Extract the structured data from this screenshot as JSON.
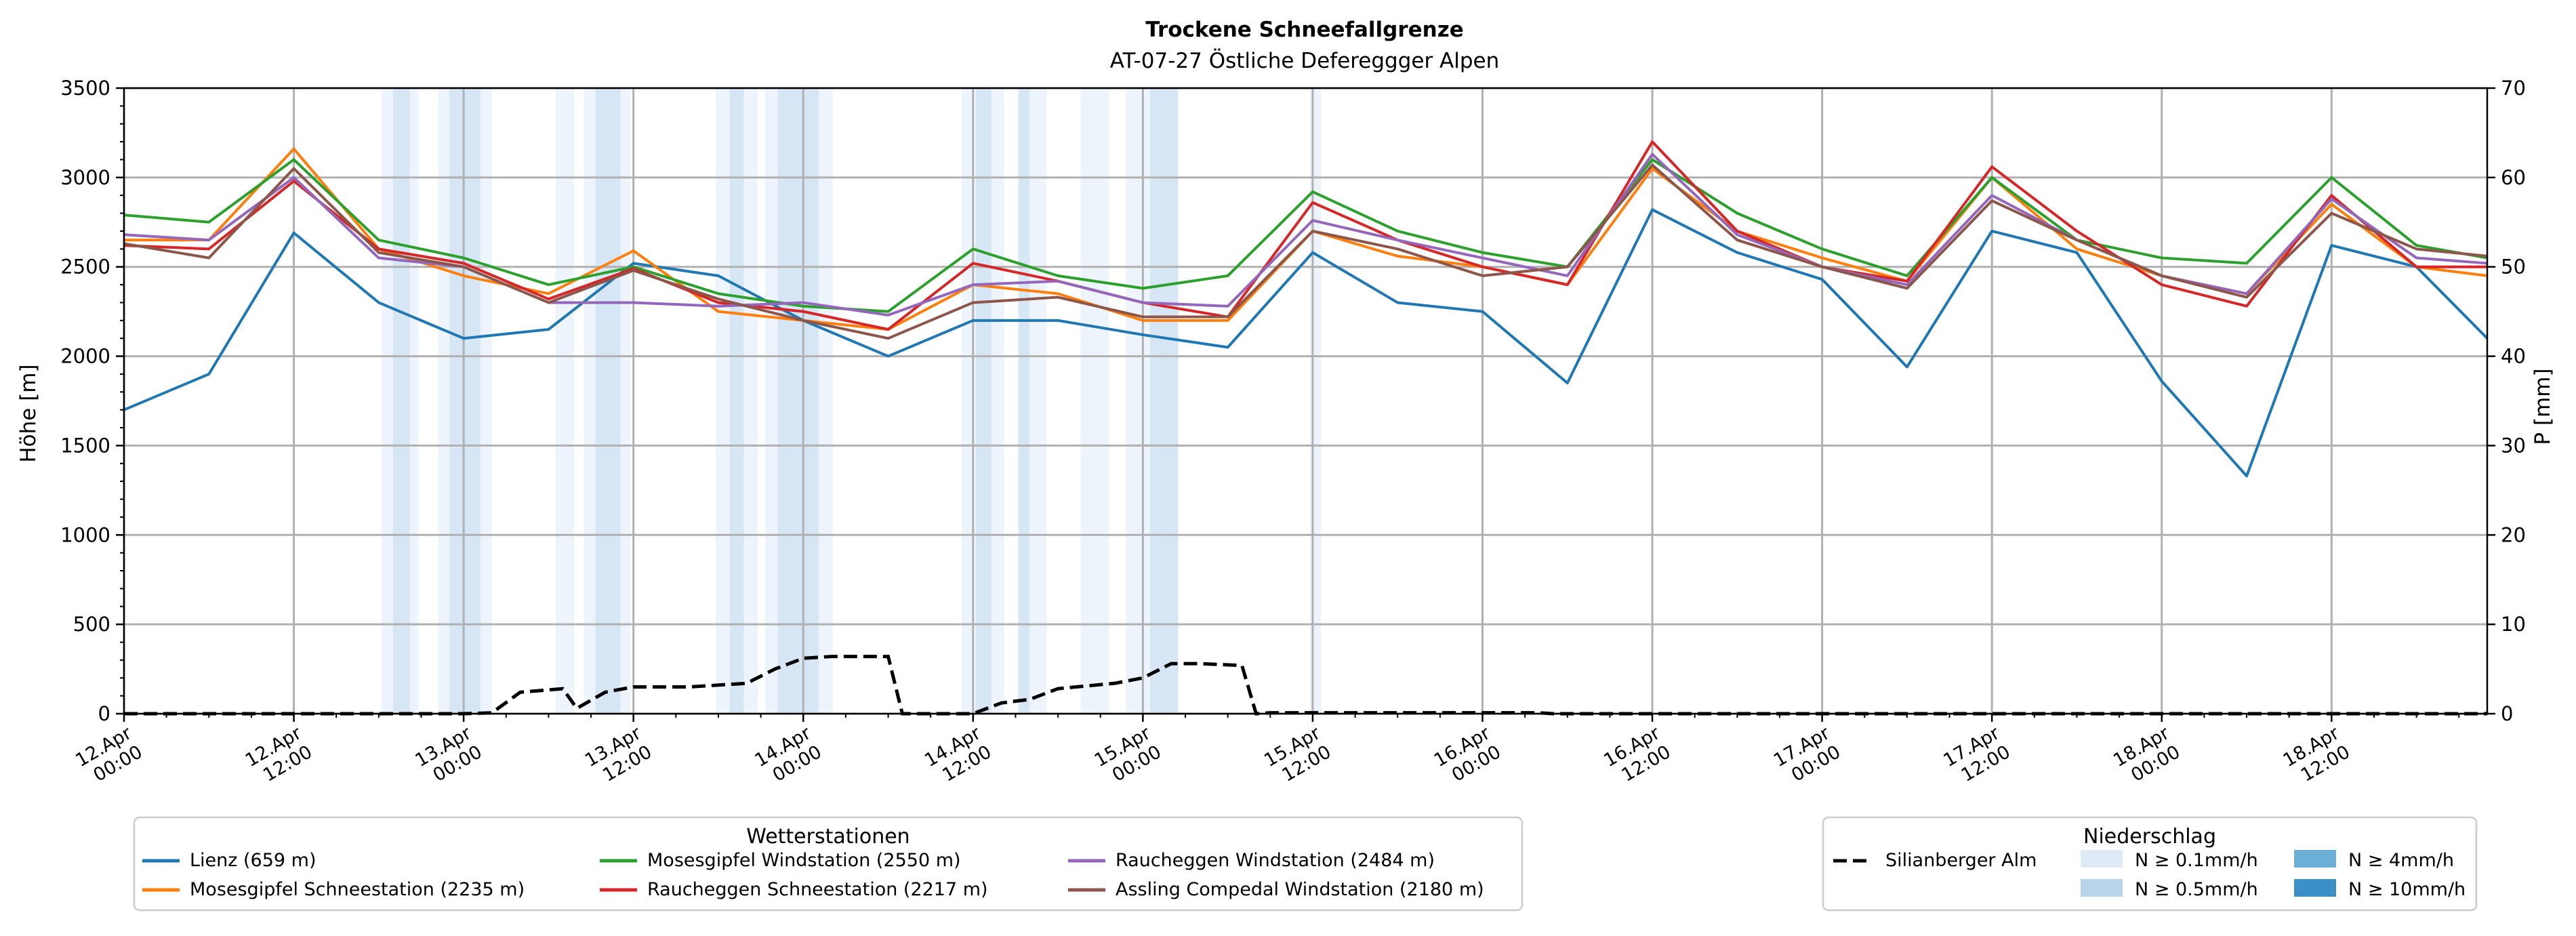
{
  "chart_data": {
    "type": "line",
    "title": "Trockene Schneefallgrenze",
    "subtitle": "AT-07-27 Östliche Defereggger Alpen",
    "ylabel": "Höhe [m]",
    "y2label": "P [mm]",
    "ylim": [
      0,
      3500
    ],
    "y2lim": [
      0,
      70
    ],
    "xlim_hours": [
      0,
      167
    ],
    "grid": true,
    "yticks": [
      0,
      500,
      1000,
      1500,
      2000,
      2500,
      3000,
      3500
    ],
    "y2ticks": [
      0,
      10,
      20,
      30,
      40,
      50,
      60,
      70
    ],
    "xticks": [
      {
        "hour": 0,
        "line1": "12.Apr",
        "line2": "00:00"
      },
      {
        "hour": 12,
        "line1": "12.Apr",
        "line2": "12:00"
      },
      {
        "hour": 24,
        "line1": "13.Apr",
        "line2": "00:00"
      },
      {
        "hour": 36,
        "line1": "13.Apr",
        "line2": "12:00"
      },
      {
        "hour": 48,
        "line1": "14.Apr",
        "line2": "00:00"
      },
      {
        "hour": 60,
        "line1": "14.Apr",
        "line2": "12:00"
      },
      {
        "hour": 72,
        "line1": "15.Apr",
        "line2": "00:00"
      },
      {
        "hour": 84,
        "line1": "15.Apr",
        "line2": "12:00"
      },
      {
        "hour": 96,
        "line1": "16.Apr",
        "line2": "00:00"
      },
      {
        "hour": 108,
        "line1": "16.Apr",
        "line2": "12:00"
      },
      {
        "hour": 120,
        "line1": "17.Apr",
        "line2": "00:00"
      },
      {
        "hour": 132,
        "line1": "17.Apr",
        "line2": "12:00"
      },
      {
        "hour": 144,
        "line1": "18.Apr",
        "line2": "00:00"
      },
      {
        "hour": 156,
        "line1": "18.Apr",
        "line2": "12:00"
      }
    ],
    "x_hours": [
      0,
      6,
      12,
      18,
      24,
      30,
      36,
      42,
      48,
      54,
      60,
      66,
      72,
      78,
      84,
      90,
      96,
      102,
      108,
      114,
      120,
      126,
      132,
      138,
      144,
      150,
      156,
      162,
      167
    ],
    "series": [
      {
        "name": "Lienz (659 m)",
        "color": "#1f77b4",
        "values": [
          1700,
          1900,
          2690,
          2300,
          2100,
          2150,
          2520,
          2450,
          2200,
          2000,
          2200,
          2200,
          2120,
          2050,
          2580,
          2300,
          2250,
          1850,
          2820,
          2580,
          2430,
          1940,
          2700,
          2580,
          1860,
          1330,
          2620,
          2500,
          2100
        ]
      },
      {
        "name": "Mosesgipfel Schneestation (2235 m)",
        "color": "#ff7f0e",
        "values": [
          2650,
          2650,
          3160,
          2600,
          2450,
          2350,
          2590,
          2250,
          2200,
          2150,
          2400,
          2350,
          2200,
          2200,
          2700,
          2560,
          2500,
          2400,
          3050,
          2700,
          2550,
          2420,
          3000,
          2600,
          2450,
          2350,
          2850,
          2500,
          2450
        ]
      },
      {
        "name": "Mosesgipfel Windstation (2550 m)",
        "color": "#2ca02c",
        "values": [
          2790,
          2750,
          3100,
          2650,
          2550,
          2400,
          2500,
          2350,
          2280,
          2250,
          2600,
          2450,
          2380,
          2450,
          2920,
          2700,
          2580,
          2500,
          3100,
          2800,
          2600,
          2450,
          3000,
          2650,
          2550,
          2520,
          3000,
          2620,
          2550
        ]
      },
      {
        "name": "Raucheggen Schneestation (2217 m)",
        "color": "#d62728",
        "values": [
          2620,
          2600,
          2980,
          2600,
          2520,
          2320,
          2490,
          2300,
          2250,
          2150,
          2520,
          2420,
          2300,
          2220,
          2860,
          2650,
          2500,
          2400,
          3200,
          2700,
          2500,
          2420,
          3060,
          2700,
          2400,
          2280,
          2900,
          2500,
          2500
        ]
      },
      {
        "name": "Raucheggen Windstation (2484 m)",
        "color": "#9467bd",
        "values": [
          2680,
          2650,
          3000,
          2550,
          2500,
          2300,
          2300,
          2280,
          2300,
          2230,
          2400,
          2420,
          2300,
          2280,
          2760,
          2650,
          2550,
          2450,
          3130,
          2680,
          2500,
          2400,
          2900,
          2650,
          2450,
          2350,
          2880,
          2550,
          2520
        ]
      },
      {
        "name": "Assling Compedal Windstation (2180 m)",
        "color": "#8c564b",
        "values": [
          2630,
          2550,
          3050,
          2580,
          2500,
          2300,
          2480,
          2320,
          2200,
          2100,
          2300,
          2330,
          2220,
          2220,
          2700,
          2600,
          2450,
          2500,
          3070,
          2650,
          2500,
          2380,
          2870,
          2650,
          2450,
          2330,
          2800,
          2600,
          2560
        ]
      }
    ],
    "dashed_series": {
      "name": "Silianberger Alm",
      "color": "#000000",
      "x_hours": [
        0,
        24,
        26,
        28,
        31,
        32,
        34,
        36,
        40,
        44,
        46,
        48,
        50,
        54,
        55,
        56,
        60,
        62,
        64,
        66,
        70,
        72,
        74,
        76,
        79,
        80,
        81,
        96,
        100,
        101,
        167
      ],
      "values": [
        0,
        0,
        5,
        120,
        140,
        30,
        120,
        150,
        150,
        170,
        250,
        310,
        320,
        320,
        0,
        0,
        0,
        60,
        80,
        140,
        170,
        200,
        280,
        280,
        270,
        0,
        5,
        5,
        5,
        0,
        0
      ]
    },
    "precip_bands": [
      {
        "start": 18.2,
        "end": 19.0,
        "level": 1
      },
      {
        "start": 19.0,
        "end": 20.2,
        "level": 2
      },
      {
        "start": 20.2,
        "end": 20.8,
        "level": 1
      },
      {
        "start": 22.2,
        "end": 23.0,
        "level": 1
      },
      {
        "start": 23.0,
        "end": 25.2,
        "level": 2
      },
      {
        "start": 25.2,
        "end": 26.0,
        "level": 1
      },
      {
        "start": 30.5,
        "end": 31.8,
        "level": 1
      },
      {
        "start": 32.5,
        "end": 33.3,
        "level": 1
      },
      {
        "start": 33.3,
        "end": 35.1,
        "level": 2
      },
      {
        "start": 35.1,
        "end": 35.8,
        "level": 1
      },
      {
        "start": 41.8,
        "end": 42.8,
        "level": 1
      },
      {
        "start": 42.8,
        "end": 43.8,
        "level": 2
      },
      {
        "start": 43.8,
        "end": 44.8,
        "level": 1
      },
      {
        "start": 45.3,
        "end": 46.2,
        "level": 1
      },
      {
        "start": 46.2,
        "end": 49.1,
        "level": 2
      },
      {
        "start": 49.1,
        "end": 50.1,
        "level": 1
      },
      {
        "start": 59.2,
        "end": 60.2,
        "level": 1
      },
      {
        "start": 60.2,
        "end": 61.3,
        "level": 2
      },
      {
        "start": 61.3,
        "end": 62.2,
        "level": 1
      },
      {
        "start": 63.2,
        "end": 64.0,
        "level": 2
      },
      {
        "start": 64.0,
        "end": 65.2,
        "level": 1
      },
      {
        "start": 67.6,
        "end": 69.6,
        "level": 1
      },
      {
        "start": 70.8,
        "end": 72.5,
        "level": 1
      },
      {
        "start": 72.5,
        "end": 74.5,
        "level": 2
      },
      {
        "start": 83.8,
        "end": 84.6,
        "level": 1
      }
    ],
    "legend_stations": {
      "title": "Wetterstationen",
      "position": "bottom-left",
      "labels": [
        "Lienz (659 m)",
        "Mosesgipfel Windstation (2550 m)",
        "Raucheggen Windstation (2484 m)",
        "Mosesgipfel Schneestation (2235 m)",
        "Raucheggen Schneestation (2217 m)",
        "Assling Compedal Windstation (2180 m)"
      ]
    },
    "legend_precip": {
      "title": "Niederschlag",
      "position": "bottom-right",
      "dashed_label": "Silianberger Alm",
      "entries": [
        {
          "label": "N ≥ 0.1mm/h",
          "color": "#deebf7"
        },
        {
          "label": "N ≥ 0.5mm/h",
          "color": "#b8d4ea"
        },
        {
          "label": "N ≥ 4mm/h",
          "color": "#6baed6"
        },
        {
          "label": "N ≥ 10mm/h",
          "color": "#3c8fc7"
        }
      ]
    },
    "band_colors": {
      "1": "#eef4fb",
      "2": "#d6e6f4"
    }
  }
}
